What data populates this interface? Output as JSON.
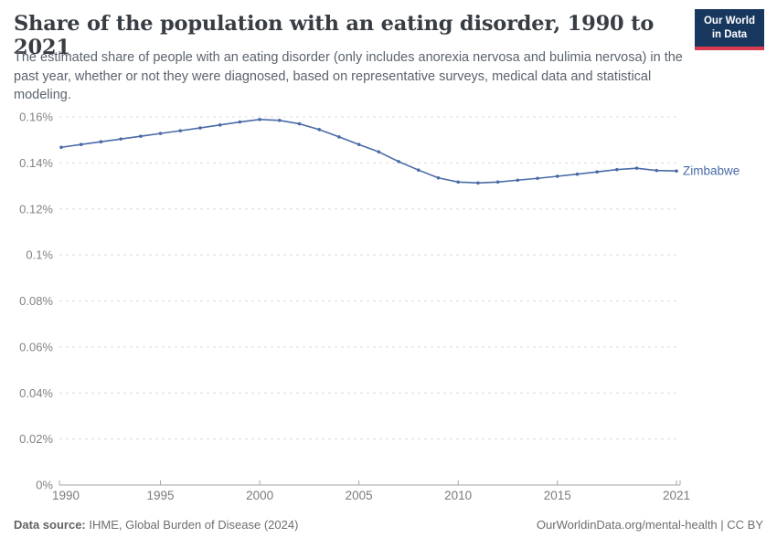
{
  "header": {
    "title": "Share of the population with an eating disorder, 1990 to 2021",
    "subtitle": "The estimated share of people with an eating disorder (only includes anorexia nervosa and bulimia nervosa) in the past year, whether or not they were diagnosed, based on representative surveys, medical data and statistical modeling.",
    "logo": {
      "line1": "Our World",
      "line2": "in Data",
      "bg_color": "#18375f",
      "bar_color": "#d83a50"
    }
  },
  "chart_data": {
    "type": "line",
    "title": "Share of the population with an eating disorder, 1990 to 2021",
    "x": [
      1990,
      1991,
      1992,
      1993,
      1994,
      1995,
      1996,
      1997,
      1998,
      1999,
      2000,
      2001,
      2002,
      2003,
      2004,
      2005,
      2006,
      2007,
      2008,
      2009,
      2010,
      2011,
      2012,
      2013,
      2014,
      2015,
      2016,
      2017,
      2018,
      2019,
      2020,
      2021
    ],
    "series": [
      {
        "name": "Zimbabwe",
        "color": "#4a6ba6",
        "values": [
          0.1468,
          0.148,
          0.1492,
          0.1504,
          0.1516,
          0.1528,
          0.154,
          0.1552,
          0.1565,
          0.1578,
          0.1589,
          0.1585,
          0.157,
          0.1545,
          0.1513,
          0.148,
          0.1448,
          0.1406,
          0.1369,
          0.1335,
          0.1317,
          0.1313,
          0.1317,
          0.1325,
          0.1333,
          0.1342,
          0.1351,
          0.1361,
          0.1371,
          0.1377,
          0.1367,
          0.1365
        ]
      }
    ],
    "unit": "%",
    "ylim": [
      0,
      0.16
    ],
    "yticks": [
      0,
      0.02,
      0.04,
      0.06,
      0.08,
      0.1,
      0.12,
      0.14,
      0.16
    ],
    "ytick_labels": [
      "0%",
      "0.02%",
      "0.04%",
      "0.06%",
      "0.08%",
      "0.1%",
      "0.12%",
      "0.14%",
      "0.16%"
    ],
    "xticks": [
      1990,
      1995,
      2000,
      2005,
      2010,
      2015,
      2021
    ],
    "grid": "horizontal-dashed",
    "legend_position": "end-of-line-label"
  },
  "footer": {
    "datasource_label": "Data source:",
    "datasource_value": " IHME, Global Burden of Disease (2024)",
    "attribution": "OurWorldinData.org/mental-health | CC BY"
  }
}
